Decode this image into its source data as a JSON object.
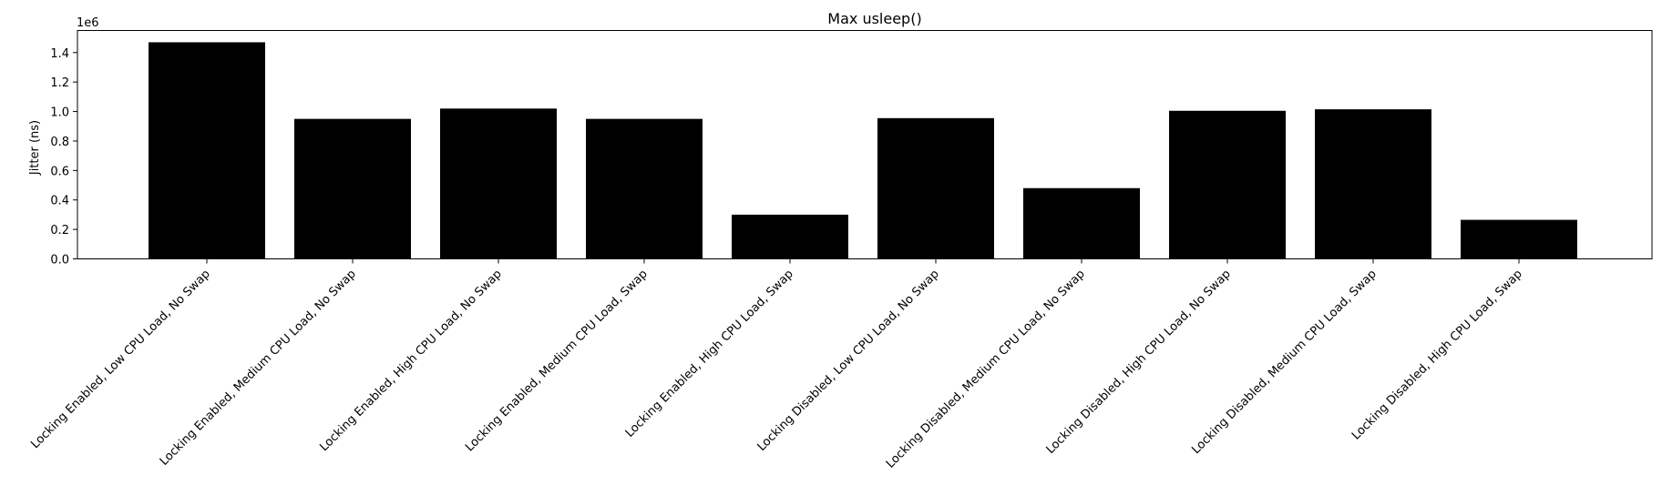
{
  "chart_data": {
    "type": "bar",
    "title": "Max usleep()",
    "ylabel": "Jitter (ns)",
    "xlabel": "",
    "y_offset_text": "1e6",
    "ylim": [
      0,
      1.55
    ],
    "yticks": [
      0.0,
      0.2,
      0.4,
      0.6,
      0.8,
      1.0,
      1.2,
      1.4
    ],
    "ytick_labels": [
      "0.0",
      "0.2",
      "0.4",
      "0.6",
      "0.8",
      "1.0",
      "1.2",
      "1.4"
    ],
    "grid": false,
    "bar_color": "#000000",
    "categories": [
      "Locking Enabled, Low CPU Load, No Swap",
      "Locking Enabled, Medium CPU Load, No Swap",
      "Locking Enabled, High CPU Load, No Swap",
      "Locking Enabled, Medium CPU Load, Swap",
      "Locking Enabled, High CPU Load, Swap",
      "Locking Disabled, Low CPU Load, No Swap",
      "Locking Disabled, Medium CPU Load, No Swap",
      "Locking Disabled, High CPU Load, No Swap",
      "Locking Disabled, Medium CPU Load, Swap",
      "Locking Disabled, High CPU Load, Swap"
    ],
    "values": [
      1.47,
      0.95,
      1.02,
      0.95,
      0.3,
      0.955,
      0.48,
      1.005,
      1.015,
      0.265
    ]
  }
}
